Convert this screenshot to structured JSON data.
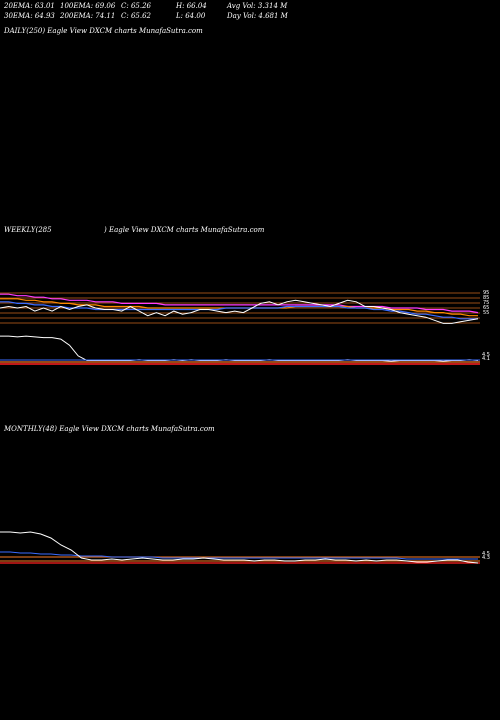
{
  "stats": {
    "row1": [
      "20EMA: 63.01",
      "100EMA: 69.06",
      "C: 65.26",
      "H: 66.04",
      "Avg Vol: 3.314  M"
    ],
    "row2": [
      "30EMA: 64.93",
      "200EMA: 74.11",
      "C: 65.62",
      "L: 64.00",
      "Day Vol: 4.681 M"
    ]
  },
  "panels": {
    "daily_label": "DAILY(250) Eagle  View  DXCM charts MunafaSutra.com",
    "weekly_label_left": "WEEKLY(285",
    "weekly_label_right": ") Eagle  View  DXCM charts MunafaSutra.com",
    "monthly_label": "MONTHLY(48) Eagle  View  DXCM charts MunafaSutra.com"
  },
  "colors": {
    "background": "#000000",
    "price": "#ffffff",
    "ema_blue": "#3a6cff",
    "ema_pink": "#ff3cff",
    "ema_orange": "#ff8a00",
    "level_line": "#c8641e",
    "volume_red": "#ff2020"
  },
  "chart_data": [
    {
      "type": "line",
      "title": "WEEKLY(285) Eagle View DXCM charts MunafaSutra.com",
      "level_labels": [
        "95",
        "85",
        "75",
        "65",
        "55"
      ],
      "series": [
        {
          "values": [
            79,
            80,
            79,
            80,
            77,
            79,
            77,
            80,
            78,
            80,
            81,
            79,
            78,
            78,
            77,
            80,
            77,
            74,
            76,
            74,
            77,
            75,
            76,
            78,
            78,
            77,
            76,
            77,
            76,
            79,
            82,
            83,
            81,
            83,
            84,
            83,
            82,
            81,
            80,
            82,
            84,
            83,
            80,
            80,
            79,
            78,
            76,
            75,
            74,
            73,
            71,
            69,
            69,
            70,
            71,
            72
          ]
        },
        {
          "values": [
            83,
            83,
            82,
            82,
            81,
            81,
            80,
            80,
            79,
            79,
            79,
            78,
            78,
            78,
            78,
            78,
            78,
            78,
            78,
            78,
            78,
            78,
            78,
            78,
            78,
            78,
            79,
            79,
            79,
            79,
            79,
            79,
            79,
            80,
            80,
            80,
            80,
            80,
            80,
            80,
            79,
            79,
            79,
            78,
            78,
            77,
            77,
            76,
            75,
            75,
            74,
            73,
            73,
            72,
            72,
            72
          ]
        },
        {
          "values": [
            85,
            85,
            85,
            84,
            84,
            83,
            83,
            82,
            82,
            81,
            81,
            81,
            80,
            80,
            80,
            80,
            80,
            79,
            79,
            79,
            79,
            79,
            79,
            79,
            79,
            79,
            79,
            79,
            79,
            79,
            79,
            79,
            79,
            79,
            80,
            80,
            80,
            80,
            80,
            80,
            80,
            79,
            79,
            79,
            79,
            78,
            78,
            78,
            77,
            77,
            76,
            76,
            75,
            75,
            74,
            74
          ]
        },
        {
          "values": [
            88,
            88,
            87,
            87,
            86,
            86,
            85,
            85,
            84,
            84,
            84,
            83,
            83,
            83,
            82,
            82,
            82,
            82,
            82,
            81,
            81,
            81,
            81,
            81,
            81,
            81,
            81,
            81,
            81,
            81,
            81,
            81,
            81,
            81,
            81,
            81,
            81,
            81,
            81,
            81,
            80,
            80,
            80,
            80,
            80,
            79,
            79,
            79,
            79,
            78,
            78,
            78,
            77,
            77,
            77,
            76
          ]
        }
      ],
      "volume_labels": [
        "4.5",
        "4.1"
      ]
    },
    {
      "type": "line",
      "title": "MONTHLY(48) Eagle View DXCM charts MunafaSutra.com",
      "series": [
        {
          "values": [
            98,
            98,
            97,
            98,
            96,
            92,
            85,
            80,
            72,
            70,
            70,
            71,
            70,
            71,
            72,
            71,
            70,
            70,
            71,
            71,
            72,
            71,
            70,
            70,
            70,
            69,
            70,
            70,
            69,
            69,
            70,
            70,
            71,
            70,
            70,
            69,
            70,
            69,
            70,
            70,
            69,
            68,
            68,
            69,
            70,
            70,
            68,
            67
          ]
        },
        {
          "values": [
            78,
            78,
            77,
            77,
            76,
            76,
            75,
            75,
            74,
            74,
            74,
            73,
            73,
            73,
            73,
            73,
            72,
            72,
            72,
            72,
            72,
            72,
            72,
            72,
            72,
            72,
            72,
            72,
            72,
            72,
            72,
            72,
            72,
            72,
            72,
            72,
            72,
            72,
            72,
            72,
            71,
            71,
            71,
            71,
            71,
            71,
            71,
            71
          ]
        }
      ],
      "level_labels": [
        "4.5",
        "4.3"
      ]
    }
  ]
}
